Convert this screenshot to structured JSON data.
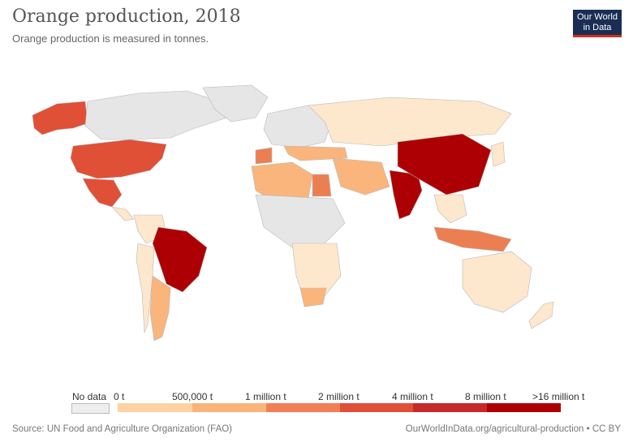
{
  "header": {
    "title": "Orange production, 2018",
    "subtitle": "Orange production is measured in tonnes."
  },
  "logo": {
    "line1": "Our World",
    "line2": "in Data"
  },
  "legend": {
    "no_data_label": "No data",
    "no_data_color": "#eeeeee",
    "bins": [
      {
        "label": "0 t",
        "color": "#fee9cf"
      },
      {
        "label": "500,000 t",
        "color": "#fdd3a3"
      },
      {
        "label": "1 million t",
        "color": "#f9b47b"
      },
      {
        "label": "2 million t",
        "color": "#f07f53"
      },
      {
        "label": "4 million t",
        "color": "#df5037"
      },
      {
        "label": "8 million t",
        "color": "#c62a28"
      },
      {
        "label": ">16 million t",
        "color": "#ad0004"
      }
    ]
  },
  "footer": {
    "source": "Source: UN Food and Agriculture Organization (FAO)",
    "credit": "OurWorldInData.org/agricultural-production • CC BY"
  },
  "map_colors": {
    "no_data": "#e6e6e6",
    "lowest": "#fde7cd",
    "low": "#f9b57c",
    "mid": "#ec7f52",
    "high": "#df5037",
    "highest": "#ad0004",
    "border": "#b9b9b9"
  }
}
